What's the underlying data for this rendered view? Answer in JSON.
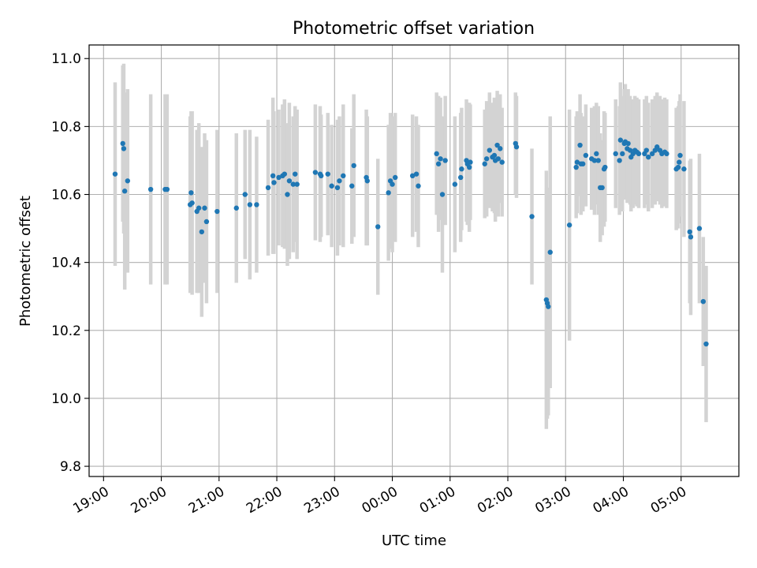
{
  "chart_data": {
    "type": "scatter",
    "title": "Photometric offset variation",
    "xlabel": "UTC time",
    "ylabel": "Photometric offset",
    "grid": true,
    "x_tick_labels": [
      "19:00",
      "20:00",
      "21:00",
      "22:00",
      "23:00",
      "00:00",
      "01:00",
      "02:00",
      "03:00",
      "04:00",
      "05:00"
    ],
    "x_tick_times": [
      "19:00",
      "20:00",
      "21:00",
      "22:00",
      "23:00",
      "24:00",
      "25:00",
      "26:00",
      "27:00",
      "28:00",
      "29:00"
    ],
    "y_tick_labels": [
      "9.8",
      "10.0",
      "10.2",
      "10.4",
      "10.6",
      "10.8",
      "11.0"
    ],
    "y_ticks": [
      9.8,
      10.0,
      10.2,
      10.4,
      10.6,
      10.8,
      11.0
    ],
    "xlim": [
      "18:45",
      "30:00"
    ],
    "ylim": [
      9.77,
      11.04
    ],
    "colors": {
      "points": "#1f77b4",
      "errorbars": "#d3d3d3",
      "grid": "#b0b0b0"
    },
    "series": [
      {
        "points": [
          [
            "19:12",
            10.66,
            0.27
          ],
          [
            "19:20",
            10.75,
            0.23
          ],
          [
            "19:21",
            10.735,
            0.25
          ],
          [
            "19:22",
            10.61,
            0.29
          ],
          [
            "19:25",
            10.64,
            0.27
          ],
          [
            "19:49",
            10.615,
            0.28
          ],
          [
            "20:04",
            10.615,
            0.28
          ],
          [
            "20:06",
            10.615,
            0.28
          ],
          [
            "20:30",
            10.57,
            0.26
          ],
          [
            "20:31",
            10.605,
            0.24
          ],
          [
            "20:32",
            10.575,
            0.27
          ],
          [
            "20:37",
            10.55,
            0.24
          ],
          [
            "20:39",
            10.56,
            0.25
          ],
          [
            "20:42",
            10.49,
            0.25
          ],
          [
            "20:45",
            10.56,
            0.22
          ],
          [
            "20:47",
            10.52,
            0.24
          ],
          [
            "20:58",
            10.55,
            0.24
          ],
          [
            "21:18",
            10.56,
            0.22
          ],
          [
            "21:27",
            10.6,
            0.19
          ],
          [
            "21:32",
            10.57,
            0.22
          ],
          [
            "21:39",
            10.57,
            0.2
          ],
          [
            "21:51",
            10.62,
            0.2
          ],
          [
            "21:56",
            10.655,
            0.23
          ],
          [
            "21:57",
            10.635,
            0.21
          ],
          [
            "22:02",
            10.65,
            0.2
          ],
          [
            "22:06",
            10.655,
            0.21
          ],
          [
            "22:08",
            10.66,
            0.22
          ],
          [
            "22:11",
            10.6,
            0.21
          ],
          [
            "22:13",
            10.64,
            0.23
          ],
          [
            "22:17",
            10.63,
            0.2
          ],
          [
            "22:19",
            10.66,
            0.2
          ],
          [
            "22:21",
            10.63,
            0.22
          ],
          [
            "22:40",
            10.665,
            0.2
          ],
          [
            "22:45",
            10.66,
            0.2
          ],
          [
            "22:46",
            10.655,
            0.18
          ],
          [
            "22:53",
            10.66,
            0.18
          ],
          [
            "22:57",
            10.625,
            0.18
          ],
          [
            "23:03",
            10.62,
            0.2
          ],
          [
            "23:05",
            10.64,
            0.19
          ],
          [
            "23:09",
            10.655,
            0.21
          ],
          [
            "23:18",
            10.625,
            0.17
          ],
          [
            "23:20",
            10.685,
            0.21
          ],
          [
            "23:33",
            10.65,
            0.2
          ],
          [
            "23:34",
            10.64,
            0.19
          ],
          [
            "23:45",
            10.505,
            0.2
          ],
          [
            "23:56",
            10.605,
            0.2
          ],
          [
            "23:58",
            10.64,
            0.2
          ],
          [
            "24:00",
            10.63,
            0.2
          ],
          [
            "24:03",
            10.65,
            0.19
          ],
          [
            "24:21",
            10.655,
            0.18
          ],
          [
            "24:25",
            10.66,
            0.17
          ],
          [
            "24:27",
            10.625,
            0.18
          ],
          [
            "24:46",
            10.72,
            0.18
          ],
          [
            "24:48",
            10.69,
            0.2
          ],
          [
            "24:50",
            10.705,
            0.18
          ],
          [
            "24:52",
            10.6,
            0.23
          ],
          [
            "24:55",
            10.7,
            0.19
          ],
          [
            "25:05",
            10.63,
            0.2
          ],
          [
            "25:11",
            10.65,
            0.19
          ],
          [
            "25:12",
            10.675,
            0.18
          ],
          [
            "25:17",
            10.7,
            0.18
          ],
          [
            "25:18",
            10.69,
            0.18
          ],
          [
            "25:20",
            10.68,
            0.19
          ],
          [
            "25:21",
            10.695,
            0.17
          ],
          [
            "25:36",
            10.69,
            0.16
          ],
          [
            "25:38",
            10.705,
            0.17
          ],
          [
            "25:41",
            10.73,
            0.17
          ],
          [
            "25:44",
            10.71,
            0.16
          ],
          [
            "25:46",
            10.715,
            0.17
          ],
          [
            "25:47",
            10.7,
            0.18
          ],
          [
            "25:49",
            10.745,
            0.16
          ],
          [
            "25:50",
            10.705,
            0.17
          ],
          [
            "25:52",
            10.735,
            0.16
          ],
          [
            "25:54",
            10.695,
            0.16
          ],
          [
            "26:08",
            10.75,
            0.15
          ],
          [
            "26:09",
            10.74,
            0.15
          ],
          [
            "26:25",
            10.535,
            0.2
          ],
          [
            "26:40",
            10.29,
            0.38
          ],
          [
            "26:41",
            10.28,
            0.34
          ],
          [
            "26:42",
            10.27,
            0.32
          ],
          [
            "26:44",
            10.43,
            0.4
          ],
          [
            "27:04",
            10.51,
            0.34
          ],
          [
            "27:11",
            10.68,
            0.15
          ],
          [
            "27:12",
            10.695,
            0.15
          ],
          [
            "27:15",
            10.745,
            0.15
          ],
          [
            "27:16",
            10.69,
            0.15
          ],
          [
            "27:18",
            10.69,
            0.14
          ],
          [
            "27:21",
            10.715,
            0.15
          ],
          [
            "27:27",
            10.705,
            0.15
          ],
          [
            "27:30",
            10.7,
            0.16
          ],
          [
            "27:32",
            10.72,
            0.15
          ],
          [
            "27:34",
            10.7,
            0.16
          ],
          [
            "27:36",
            10.62,
            0.16
          ],
          [
            "27:38",
            10.62,
            0.14
          ],
          [
            "27:40",
            10.675,
            0.17
          ],
          [
            "27:41",
            10.68,
            0.16
          ],
          [
            "27:52",
            10.72,
            0.16
          ],
          [
            "27:56",
            10.7,
            0.16
          ],
          [
            "27:57",
            10.76,
            0.17
          ],
          [
            "27:59",
            10.72,
            0.17
          ],
          [
            "28:01",
            10.75,
            0.16
          ],
          [
            "28:02",
            10.755,
            0.17
          ],
          [
            "28:04",
            10.735,
            0.16
          ],
          [
            "28:05",
            10.75,
            0.16
          ],
          [
            "28:07",
            10.73,
            0.16
          ],
          [
            "28:08",
            10.71,
            0.16
          ],
          [
            "28:10",
            10.72,
            0.16
          ],
          [
            "28:12",
            10.73,
            0.16
          ],
          [
            "28:14",
            10.725,
            0.16
          ],
          [
            "28:16",
            10.72,
            0.16
          ],
          [
            "28:22",
            10.72,
            0.16
          ],
          [
            "28:24",
            10.73,
            0.16
          ],
          [
            "28:26",
            10.71,
            0.16
          ],
          [
            "28:30",
            10.72,
            0.16
          ],
          [
            "28:33",
            10.73,
            0.16
          ],
          [
            "28:35",
            10.74,
            0.16
          ],
          [
            "28:38",
            10.73,
            0.16
          ],
          [
            "28:40",
            10.72,
            0.16
          ],
          [
            "28:43",
            10.725,
            0.16
          ],
          [
            "28:45",
            10.72,
            0.16
          ],
          [
            "28:55",
            10.675,
            0.18
          ],
          [
            "28:57",
            10.68,
            0.18
          ],
          [
            "28:58",
            10.695,
            0.18
          ],
          [
            "28:59",
            10.715,
            0.18
          ],
          [
            "29:03",
            10.675,
            0.2
          ],
          [
            "29:09",
            10.49,
            0.21
          ],
          [
            "29:10",
            10.475,
            0.23
          ],
          [
            "29:19",
            10.5,
            0.22
          ],
          [
            "29:23",
            10.285,
            0.19
          ],
          [
            "29:26",
            10.16,
            0.23
          ]
        ]
      }
    ]
  }
}
